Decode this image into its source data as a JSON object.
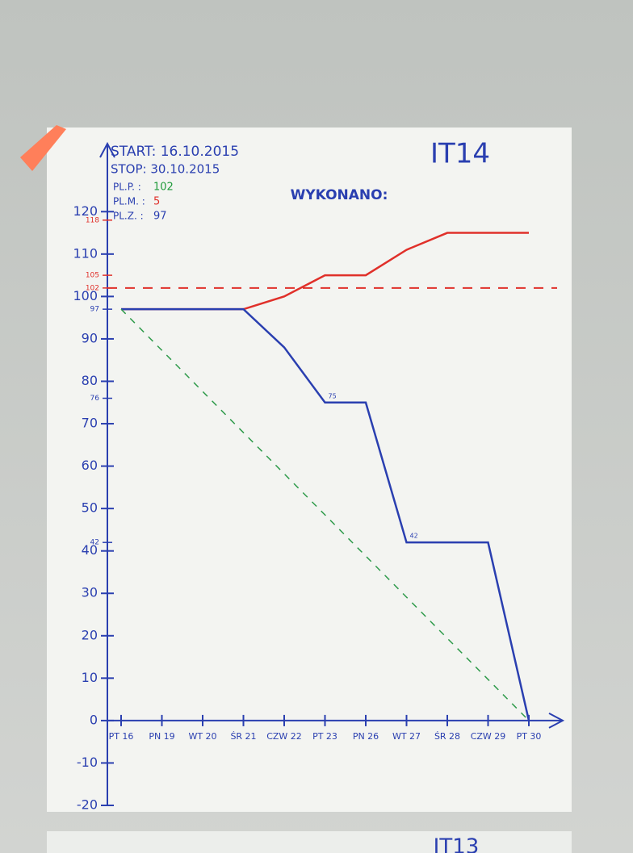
{
  "chart_data": {
    "type": "line",
    "title": "IT14",
    "subtitle": "WYKONANO:",
    "start": "START: 16.10.2015",
    "stop": "STOP: 30.10.2015",
    "plan_lines": [
      {
        "label": "PL.P. :",
        "value": "102",
        "color": "#1f9a3a"
      },
      {
        "label": "PL.M. :",
        "value": "5",
        "color": "#e0302a"
      },
      {
        "label": "PL.Z. :",
        "value": "97",
        "color": "#2a3fb0"
      }
    ],
    "next_sheet_title": "IT13",
    "categories": [
      "PT 16",
      "PN 19",
      "WT 20",
      "ŚR 21",
      "CZW 22",
      "PT 23",
      "PN 26",
      "WT 27",
      "ŚR 28",
      "CZW 29",
      "PT 30"
    ],
    "series": [
      {
        "color": "#e0302a",
        "dash": false,
        "values": [
          97,
          97,
          97,
          97,
          100,
          105,
          105,
          111,
          115,
          115,
          115
        ]
      },
      {
        "color": "#2a3fb0",
        "dash": false,
        "values": [
          97,
          97,
          97,
          97,
          88,
          75,
          75,
          42,
          42,
          42,
          0
        ],
        "value_labels": [
          null,
          null,
          null,
          null,
          null,
          "75",
          null,
          "42",
          null,
          null,
          null
        ]
      },
      {
        "color": "#2e9a4a",
        "dash": true,
        "values": [
          97,
          87.3,
          77.6,
          67.9,
          58.2,
          48.5,
          38.8,
          29.1,
          19.4,
          9.7,
          0
        ]
      }
    ],
    "target": {
      "value": 102,
      "color": "#e0302a"
    },
    "ylim": [
      -20,
      125
    ],
    "yticks": [
      -20,
      -10,
      0,
      10,
      20,
      30,
      40,
      50,
      60,
      70,
      80,
      90,
      100,
      110,
      120
    ],
    "ref_ticks": [
      118,
      105,
      102,
      97,
      76,
      42
    ],
    "ref_tick_colors": [
      "#e0302a",
      "#e0302a",
      "#e0302a",
      "#2a3fb0",
      "#2a3fb0",
      "#2a3fb0"
    ],
    "axis_color": "#2a3fb0"
  }
}
